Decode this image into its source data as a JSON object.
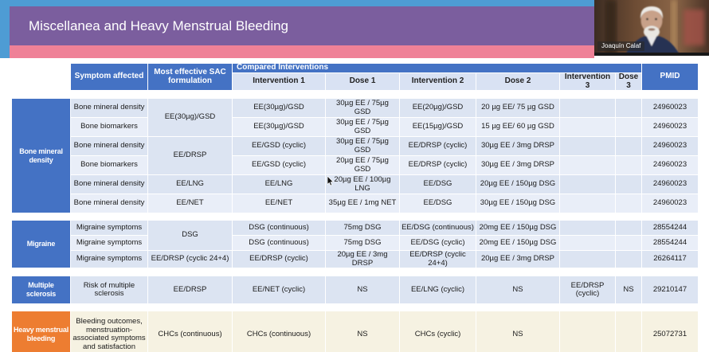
{
  "banner": {
    "title": "Miscellanea and Heavy Menstrual Bleeding"
  },
  "webcam": {
    "name_label": "Joaquín Calaf"
  },
  "colors": {
    "strip_blue": "#4e9cd4",
    "banner_purple": "#7b5e9e",
    "banner_pink": "#ef8197",
    "header_blue": "#4472c4",
    "subheader_blue": "#d9e2f3",
    "row_blue": "#dce4f2",
    "row_blue_light": "#e9eef8",
    "category_orange": "#ed7d31",
    "row_cream": "#f6f2e2"
  },
  "table": {
    "headers": {
      "symptom": "Symptom affected",
      "sac": "Most effective SAC formulation",
      "compared": "Compared Interventions",
      "sub": [
        "Intervention 1",
        "Dose 1",
        "Intervention 2",
        "Dose 2",
        "Intervention 3",
        "Dose 3"
      ],
      "pmid": "PMID"
    },
    "groups": [
      {
        "category": "Bone mineral density",
        "category_color": "#4472c4",
        "rows": [
          {
            "symptom": "Bone mineral density",
            "sac": "EE(30µg)/GSD",
            "sac_span": 2,
            "cells": [
              "EE(30µg)/GSD",
              "30µg EE / 75µg GSD",
              "EE(20µg)/GSD",
              "20 µg EE/ 75 µg GSD",
              "",
              "",
              "24960023"
            ]
          },
          {
            "symptom": "Bone biomarkers",
            "cells": [
              "EE(30µg)/GSD",
              "30µg EE / 75µg GSD",
              "EE(15µg)/GSD",
              "15 µg EE/ 60 µg GSD",
              "",
              "",
              "24960023"
            ]
          },
          {
            "symptom": "Bone mineral density",
            "sac": "EE/DRSP",
            "sac_span": 2,
            "cells": [
              "EE/GSD (cyclic)",
              "30µg EE / 75µg GSD",
              "EE/DRSP (cyclic)",
              "30µg EE / 3mg DRSP",
              "",
              "",
              "24960023"
            ]
          },
          {
            "symptom": "Bone biomarkers",
            "cells": [
              "EE/GSD (cyclic)",
              "20µg EE / 75µg GSD",
              "EE/DRSP (cyclic)",
              "30µg EE / 3mg DRSP",
              "",
              "",
              "24960023"
            ]
          },
          {
            "symptom": "Bone mineral density",
            "sac": "EE/LNG",
            "sac_span": 1,
            "cells": [
              "EE/LNG",
              "20µg EE / 100µg LNG",
              "EE/DSG",
              "20µg EE / 150µg DSG",
              "",
              "",
              "24960023"
            ]
          },
          {
            "symptom": "Bone mineral density",
            "sac": "EE/NET",
            "sac_span": 1,
            "cells": [
              "EE/NET",
              "35µg EE / 1mg NET",
              "EE/DSG",
              "30µg EE / 150µg DSG",
              "",
              "",
              "24960023"
            ]
          }
        ]
      },
      {
        "category": "Migraine",
        "category_color": "#4472c4",
        "rows": [
          {
            "symptom": "Migraine symptoms",
            "sac": "DSG",
            "sac_span": 2,
            "cells": [
              "DSG (continuous)",
              "75mg DSG",
              "EE/DSG (continuous)",
              "20mg EE / 150µg DSG",
              "",
              "",
              "28554244"
            ]
          },
          {
            "symptom": "Migraine symptoms",
            "cells": [
              "DSG (continuous)",
              "75mg DSG",
              "EE/DSG (cyclic)",
              "20mg EE / 150µg DSG",
              "",
              "",
              "28554244"
            ]
          },
          {
            "symptom": "Migraine symptoms",
            "sac": "EE/DRSP (cyclic 24+4)",
            "sac_span": 1,
            "cells": [
              "EE/DRSP (cyclic)",
              "20µg EE / 3mg DRSP",
              "EE/DRSP (cyclic 24+4)",
              "20µg EE / 3mg DRSP",
              "",
              "",
              "26264117"
            ]
          }
        ]
      },
      {
        "category": "Multiple sclerosis",
        "category_color": "#4472c4",
        "rows": [
          {
            "symptom": "Risk of multiple sclerosis",
            "sac": "EE/DRSP",
            "sac_span": 1,
            "cells": [
              "EE/NET (cyclic)",
              "NS",
              "EE/LNG (cyclic)",
              "NS",
              "EE/DRSP (cyclic)",
              "NS",
              "29210147"
            ]
          }
        ]
      },
      {
        "category": "Heavy menstrual bleeding",
        "category_color": "#ed7d31",
        "tone": "cream",
        "rows": [
          {
            "symptom": "Bleeding outcomes, menstruation-associated symptoms and satisfaction",
            "sac": "CHCs (continuous)",
            "sac_span": 1,
            "cells": [
              "CHCs (continuous)",
              "NS",
              "CHCs (cyclic)",
              "NS",
              "",
              "",
              "25072731"
            ]
          }
        ]
      }
    ]
  }
}
